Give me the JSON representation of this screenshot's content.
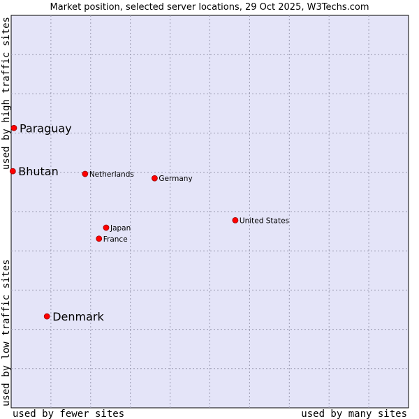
{
  "chart_data": {
    "type": "scatter",
    "title": "Market position, selected server locations, 29 Oct 2025, W3Techs.com",
    "xlabel_left": "used by fewer sites",
    "xlabel_right": "used by many sites",
    "ylabel_bottom": "used by low traffic sites",
    "ylabel_top": "used by high traffic sites",
    "xlim": [
      0,
      100
    ],
    "ylim": [
      0,
      100
    ],
    "grid": true,
    "points": [
      {
        "label": "Paraguay",
        "x": 0.7,
        "y": 71.3,
        "emphasis": true
      },
      {
        "label": "Bhutan",
        "x": 0.4,
        "y": 60.3,
        "emphasis": true
      },
      {
        "label": "Denmark",
        "x": 9.0,
        "y": 23.3,
        "emphasis": true
      },
      {
        "label": "Netherlands",
        "x": 18.6,
        "y": 59.6,
        "emphasis": false
      },
      {
        "label": "Germany",
        "x": 36.1,
        "y": 58.5,
        "emphasis": false
      },
      {
        "label": "United States",
        "x": 56.4,
        "y": 47.8,
        "emphasis": false
      },
      {
        "label": "Japan",
        "x": 23.9,
        "y": 45.9,
        "emphasis": false
      },
      {
        "label": "France",
        "x": 22.1,
        "y": 43.1,
        "emphasis": false
      }
    ]
  },
  "colors": {
    "plot_background": "#e4e4f8",
    "point": "#ff0000",
    "point_outline": "#990000"
  }
}
